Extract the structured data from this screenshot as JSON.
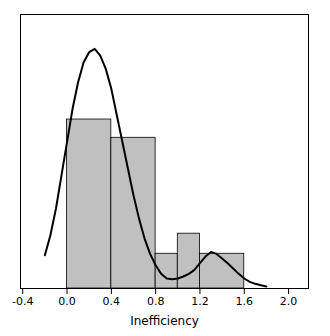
{
  "chart_data": {
    "type": "histogram",
    "xlabel": "Inefficiency",
    "bins": [
      0.0,
      0.4,
      0.8,
      1.0,
      1.2,
      1.6
    ],
    "values": [
      1.85,
      1.65,
      0.38,
      0.6,
      0.38
    ],
    "color": "#c0c0c0",
    "series": [
      {
        "type": "line",
        "color": "#000000",
        "x": [
          -0.2,
          -0.15,
          -0.1,
          -0.05,
          0.0,
          0.05,
          0.1,
          0.15,
          0.2,
          0.25,
          0.3,
          0.35,
          0.4,
          0.45,
          0.5,
          0.55,
          0.6,
          0.65,
          0.7,
          0.75,
          0.8,
          0.85,
          0.9,
          0.95,
          1.0,
          1.05,
          1.1,
          1.15,
          1.2,
          1.25,
          1.3,
          1.35,
          1.4,
          1.45,
          1.5,
          1.55,
          1.6,
          1.65,
          1.7,
          1.75,
          1.8
        ],
        "values": [
          0.3644,
          0.583,
          0.8745,
          1.2388,
          1.6032,
          1.9675,
          2.259,
          2.4776,
          2.5869,
          2.6234,
          2.5505,
          2.4048,
          2.1861,
          1.8947,
          1.6032,
          1.3117,
          1.0202,
          0.7651,
          0.5465,
          0.3789,
          0.255,
          0.1603,
          0.1093,
          0.102,
          0.1093,
          0.1312,
          0.1603,
          0.204,
          0.2769,
          0.3498,
          0.4008,
          0.3789,
          0.3279,
          0.2769,
          0.2186,
          0.1603,
          0.1093,
          0.0729,
          0.051,
          0.0364,
          0.0219
        ]
      }
    ],
    "xlim": [
      -0.42,
      2.18
    ],
    "ylim": [
      0,
      3
    ],
    "xticks": [
      -0.4,
      {
        "value": 0.0,
        "label": "0.0"
      },
      0.4,
      0.8,
      1.2,
      1.6,
      {
        "value": 2.0,
        "label": "2.0"
      }
    ],
    "yticks": [],
    "tick_labels": "x"
  }
}
